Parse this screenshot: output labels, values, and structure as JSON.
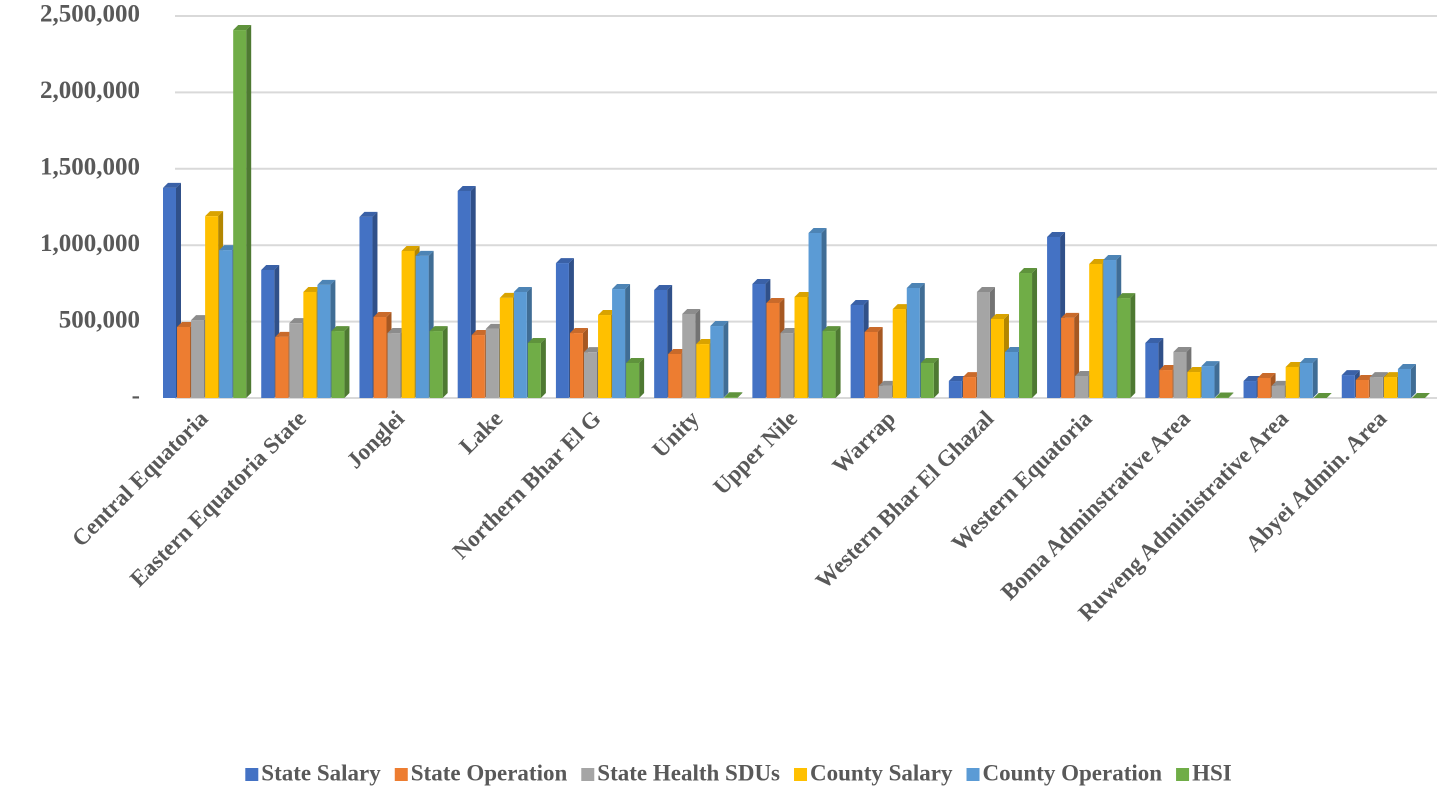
{
  "chart_data": {
    "type": "bar",
    "categories": [
      "Central Equatoria",
      "Eastern Equatoria State",
      "Jonglei",
      "Lake",
      "Northern Bhar El G",
      "Unity",
      "Upper Nile",
      "Warrap",
      "Western Bhar El Ghazal",
      "Western Equatoria",
      "Boma Adminstrative Area",
      "Ruweng Administrative Area",
      "Abyei Admin. Area"
    ],
    "series": [
      {
        "name": "State Salary",
        "color": "#4472c4",
        "values": [
          1375000,
          838000,
          1185000,
          1355000,
          883000,
          707000,
          746000,
          609000,
          111000,
          1054000,
          360000,
          111000,
          150000
        ]
      },
      {
        "name": "State Operation",
        "color": "#ed7d31",
        "values": [
          465000,
          400000,
          530000,
          412000,
          425000,
          288000,
          622000,
          432000,
          137000,
          524000,
          183000,
          131000,
          118000
        ]
      },
      {
        "name": "State Health SDUs",
        "color": "#a5a5a5",
        "values": [
          510000,
          490000,
          425000,
          452000,
          300000,
          550000,
          425000,
          79000,
          694000,
          144000,
          301000,
          79000,
          137000
        ]
      },
      {
        "name": "County Salary",
        "color": "#ffc000",
        "values": [
          1190000,
          694000,
          962000,
          655000,
          543000,
          353000,
          661000,
          582000,
          517000,
          877000,
          170000,
          203000,
          137000
        ]
      },
      {
        "name": "County Operation",
        "color": "#5b9bd5",
        "values": [
          968000,
          740000,
          930000,
          694000,
          713000,
          471000,
          1080000,
          720000,
          301000,
          903000,
          209000,
          229000,
          190000
        ]
      },
      {
        "name": "HSI",
        "color": "#70ad47",
        "values": [
          2408000,
          438000,
          438000,
          360000,
          229000,
          5000,
          438000,
          229000,
          818000,
          654000,
          3000,
          0,
          0
        ]
      }
    ],
    "ylim": [
      0,
      2500000
    ],
    "yticks": [
      {
        "value": 0,
        "label": "-"
      },
      {
        "value": 500000,
        "label": "500,000"
      },
      {
        "value": 1000000,
        "label": "1,000,000"
      },
      {
        "value": 1500000,
        "label": "1,500,000"
      },
      {
        "value": 2000000,
        "label": "2,000,000"
      },
      {
        "value": 2500000,
        "label": "2,500,000"
      }
    ],
    "grid": true
  }
}
